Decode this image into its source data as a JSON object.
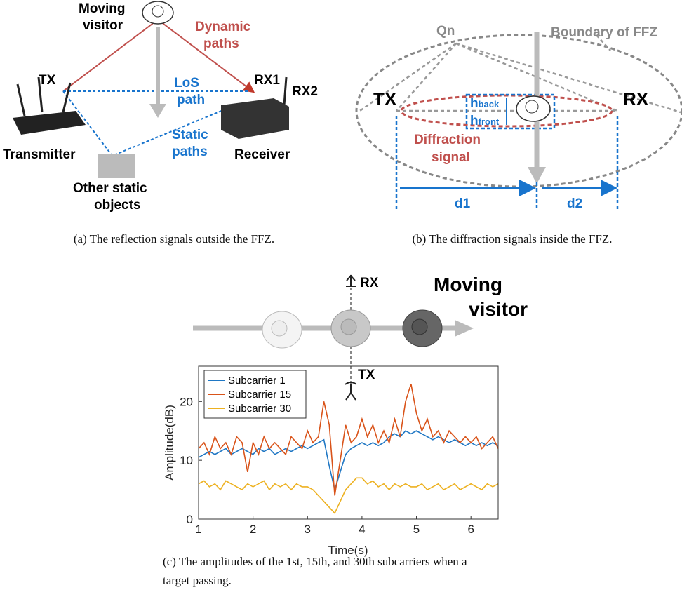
{
  "panel_a": {
    "moving_visitor": [
      "Moving",
      "visitor"
    ],
    "dynamic_paths": [
      "Dynamic",
      "paths"
    ],
    "tx": "TX",
    "los_path": [
      "LoS",
      "path"
    ],
    "rx1": "RX1",
    "rx2": "RX2",
    "transmitter": "Transmitter",
    "static_paths": [
      "Static",
      "paths"
    ],
    "receiver": "Receiver",
    "other_static_objects": [
      "Other static",
      "objects"
    ],
    "caption": "(a)  The reflection signals outside the FFZ."
  },
  "panel_b": {
    "qn": "Qn",
    "boundary": "Boundary of FFZ",
    "tx": "TX",
    "rx": "RX",
    "h_back": [
      "h",
      "back"
    ],
    "h_front": [
      "h",
      "front"
    ],
    "diffraction_signal": [
      "Diffraction",
      "signal"
    ],
    "d1": "d1",
    "d2": "d2",
    "caption": "(b)  The diffraction signals inside the FFZ."
  },
  "panel_c": {
    "rx": "RX",
    "tx": "TX",
    "moving_visitor": [
      "Moving",
      "visitor"
    ],
    "caption": [
      "(c)  The amplitudes of the 1st, 15th, and 30th subcarriers when a",
      "target passing."
    ]
  },
  "chart_data": {
    "type": "line",
    "x_label": "Time(s)",
    "y_label": "Amplitude(dB)",
    "xlim": [
      1,
      6.5
    ],
    "xticks": [
      1,
      2,
      3,
      4,
      5,
      6
    ],
    "ylim": [
      0,
      26
    ],
    "yticks": [
      0,
      10,
      20
    ],
    "legend": "top-left",
    "x": [
      1.0,
      1.1,
      1.2,
      1.3,
      1.4,
      1.5,
      1.6,
      1.7,
      1.8,
      1.9,
      2.0,
      2.1,
      2.2,
      2.3,
      2.4,
      2.5,
      2.6,
      2.7,
      2.8,
      2.9,
      3.0,
      3.1,
      3.2,
      3.3,
      3.4,
      3.5,
      3.6,
      3.7,
      3.8,
      3.9,
      4.0,
      4.1,
      4.2,
      4.3,
      4.4,
      4.5,
      4.6,
      4.7,
      4.8,
      4.9,
      5.0,
      5.1,
      5.2,
      5.3,
      5.4,
      5.5,
      5.6,
      5.7,
      5.8,
      5.9,
      6.0,
      6.1,
      6.2,
      6.3,
      6.4,
      6.5
    ],
    "series": [
      {
        "name": "Subcarrier 1",
        "color": "#1f77c4",
        "values": [
          10.5,
          11,
          11.5,
          11,
          11.5,
          12,
          11,
          11.5,
          12,
          11.5,
          11,
          12,
          11.5,
          12,
          11,
          11.5,
          12,
          11.5,
          12,
          12.5,
          12,
          12.5,
          13,
          13.5,
          9,
          5,
          8,
          11,
          12,
          12.5,
          13,
          12.5,
          13,
          12.5,
          13,
          14,
          14.5,
          14,
          15,
          14.5,
          15,
          14.5,
          14,
          13.5,
          14,
          13.5,
          13,
          13.5,
          13,
          12.5,
          13,
          12.5,
          13,
          12.5,
          13,
          12.5
        ]
      },
      {
        "name": "Subcarrier 15",
        "color": "#d95319",
        "values": [
          12,
          13,
          11,
          14,
          12,
          13,
          11,
          14,
          13,
          8,
          13,
          11,
          14,
          12,
          13,
          12,
          11,
          14,
          13,
          12,
          15,
          13,
          14,
          20,
          16,
          4,
          10,
          16,
          13,
          14,
          17,
          14,
          16,
          13,
          15,
          13,
          17,
          14,
          20,
          23,
          18,
          15,
          17,
          14,
          15,
          13,
          15,
          14,
          13,
          14,
          13,
          14,
          12,
          13,
          14,
          12
        ]
      },
      {
        "name": "Subcarrier 30",
        "color": "#edb120",
        "values": [
          6,
          6.5,
          5.5,
          6,
          5,
          6.5,
          6,
          5.5,
          5,
          6,
          5.5,
          6,
          6.5,
          5,
          6,
          5.5,
          6,
          5,
          6,
          5.5,
          5.5,
          5,
          4,
          3,
          2,
          1,
          3,
          5,
          6,
          7,
          7,
          6,
          6.5,
          5.5,
          6,
          5,
          6,
          5.5,
          6,
          5.5,
          5.5,
          6,
          5,
          5.5,
          6,
          5,
          5.5,
          6,
          5,
          5.5,
          6,
          5.5,
          5,
          6,
          5.5,
          6
        ]
      }
    ]
  }
}
